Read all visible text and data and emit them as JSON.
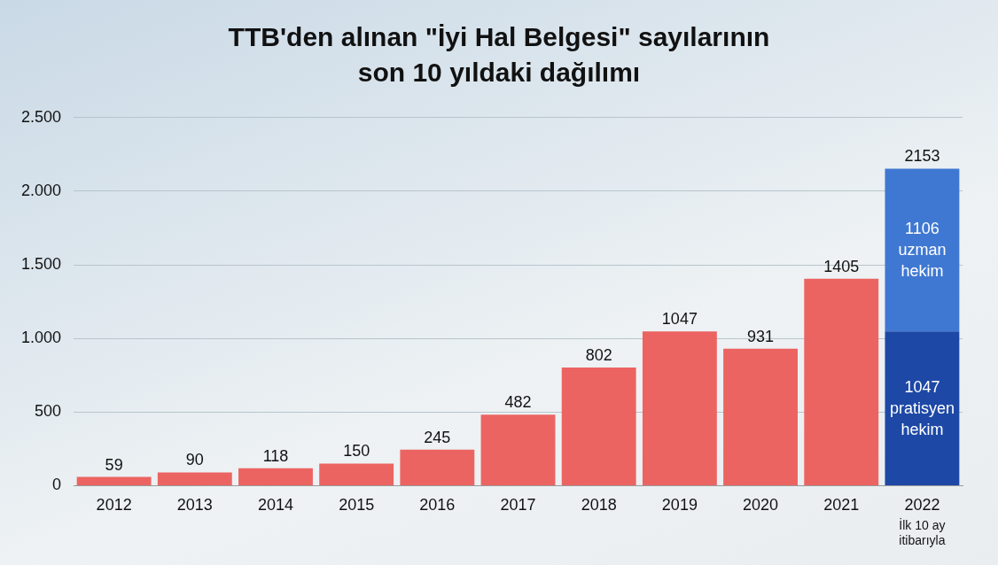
{
  "chart_data": {
    "type": "bar",
    "title": "TTB'den alınan \"İyi Hal Belgesi\" sayılarının son 10 yıldaki dağılımı",
    "categories": [
      "2012",
      "2013",
      "2014",
      "2015",
      "2016",
      "2017",
      "2018",
      "2019",
      "2020",
      "2021",
      "2022"
    ],
    "stacked": true,
    "series": [
      {
        "color": "#ec6461",
        "values": [
          59,
          90,
          118,
          150,
          245,
          482,
          802,
          1047,
          931,
          1405,
          null
        ]
      },
      {
        "name": "pratisyen hekim",
        "color": "#1d48a6",
        "values": [
          null,
          null,
          null,
          null,
          null,
          null,
          null,
          null,
          null,
          null,
          1047
        ]
      },
      {
        "name": "uzman hekim",
        "color": "#3f78d2",
        "values": [
          null,
          null,
          null,
          null,
          null,
          null,
          null,
          null,
          null,
          null,
          1106
        ]
      }
    ],
    "totals": [
      null,
      null,
      null,
      null,
      null,
      null,
      null,
      null,
      null,
      null,
      "2153"
    ],
    "data_labels": true,
    "ylim": [
      0,
      2500
    ],
    "yticks": [
      0,
      500,
      {
        "value": 1000,
        "label": "1.000"
      },
      {
        "value": 1500,
        "label": "1.500"
      },
      {
        "value": 2000,
        "label": "2.000"
      },
      {
        "value": 2500,
        "label": "2.500"
      }
    ],
    "grid": "y",
    "legend": false,
    "annotations": [
      "İlk 10 ay itibarıyla"
    ]
  }
}
